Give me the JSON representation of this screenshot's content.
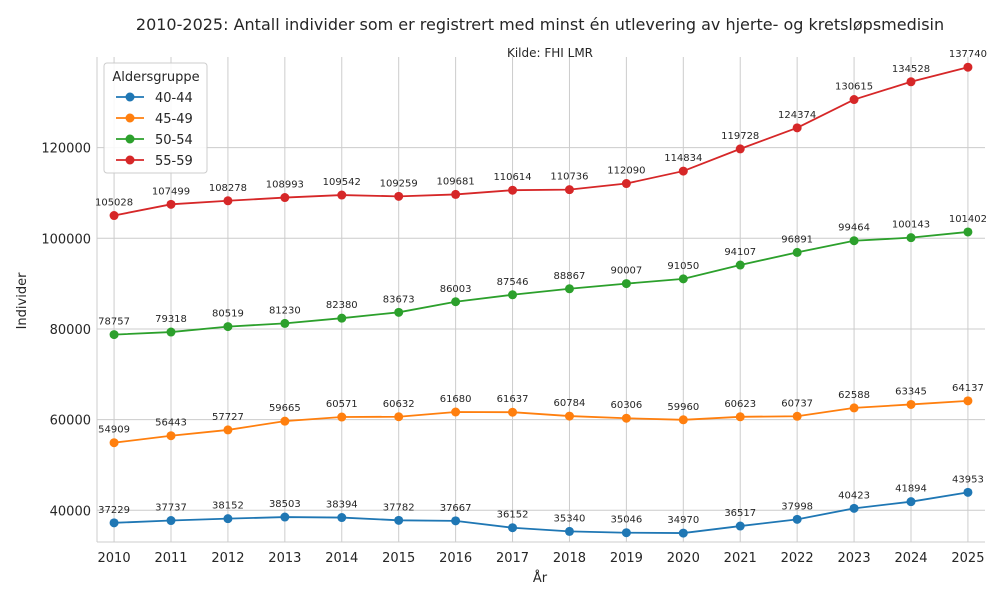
{
  "chart_data": {
    "type": "line",
    "title": "2010-2025: Antall individer som er registrert med minst én utlevering av hjerte- og kretsløpsmedisin",
    "subtitle": "Kilde: FHI LMR",
    "xlabel": "År",
    "ylabel": "Individer",
    "legend_title": "Aldersgruppe",
    "legend_position": "top-left",
    "grid": true,
    "x": [
      2010,
      2011,
      2012,
      2013,
      2014,
      2015,
      2016,
      2017,
      2018,
      2019,
      2020,
      2021,
      2022,
      2023,
      2024,
      2025
    ],
    "xlim": [
      2009.7,
      2025.3
    ],
    "ylim": [
      33000,
      140000
    ],
    "yticks": [
      40000,
      60000,
      80000,
      100000,
      120000
    ],
    "series": [
      {
        "name": "40-44",
        "color": "#1f77b4",
        "values": [
          37229,
          37737,
          38152,
          38503,
          38394,
          37782,
          37667,
          36152,
          35340,
          35046,
          34970,
          36517,
          37998,
          40423,
          41894,
          43953
        ]
      },
      {
        "name": "45-49",
        "color": "#ff7f0e",
        "values": [
          54909,
          56443,
          57727,
          59665,
          60571,
          60632,
          61680,
          61637,
          60784,
          60306,
          59960,
          60623,
          60737,
          62588,
          63345,
          64137
        ]
      },
      {
        "name": "50-54",
        "color": "#2ca02c",
        "values": [
          78757,
          79318,
          80519,
          81230,
          82380,
          83673,
          86003,
          87546,
          88867,
          90007,
          91050,
          94107,
          96891,
          99464,
          100143,
          101402
        ]
      },
      {
        "name": "55-59",
        "color": "#d62728",
        "values": [
          105028,
          107499,
          108278,
          108993,
          109542,
          109259,
          109681,
          110614,
          110736,
          112090,
          114834,
          119728,
          124374,
          130615,
          134528,
          137740
        ]
      }
    ]
  }
}
